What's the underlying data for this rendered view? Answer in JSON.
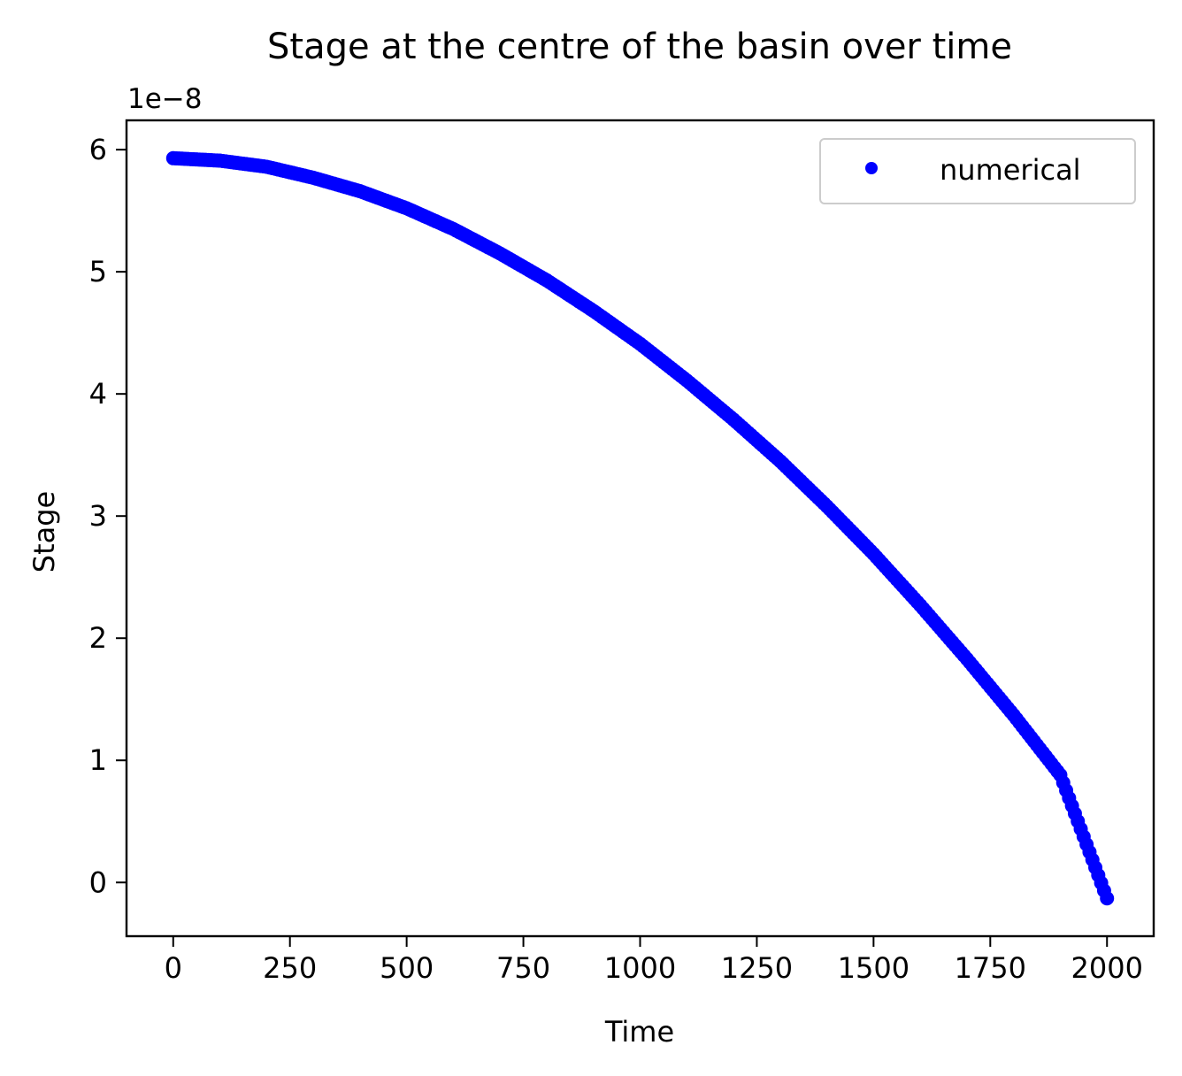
{
  "chart_data": {
    "type": "scatter",
    "title": "Stage at the centre of the  basin over time",
    "xlabel": "Time",
    "ylabel": "Stage",
    "offset_label": "1e−8",
    "xlim": [
      -100,
      2100
    ],
    "ylim": [
      -0.44,
      6.24
    ],
    "y_scale_factor": 1e-08,
    "xticks": [
      0,
      250,
      500,
      750,
      1000,
      1250,
      1500,
      1750,
      2000
    ],
    "xtick_labels": [
      "0",
      "250",
      "500",
      "750",
      "1000",
      "1250",
      "1500",
      "1750",
      "2000"
    ],
    "yticks": [
      0,
      1,
      2,
      3,
      4,
      5,
      6
    ],
    "ytick_labels": [
      "0",
      "1",
      "2",
      "3",
      "4",
      "5",
      "6"
    ],
    "grid": false,
    "legend": {
      "placement": "top-right",
      "entries": [
        "numerical"
      ]
    },
    "series": [
      {
        "name": "numerical",
        "color": "#0000ff",
        "marker": "circle",
        "x": [
          0,
          100,
          200,
          300,
          400,
          500,
          600,
          700,
          800,
          900,
          1000,
          1100,
          1200,
          1300,
          1400,
          1500,
          1600,
          1700,
          1800,
          1900,
          2000
        ],
        "y": [
          5.93,
          5.91,
          5.86,
          5.77,
          5.66,
          5.52,
          5.35,
          5.15,
          4.93,
          4.68,
          4.41,
          4.11,
          3.79,
          3.45,
          3.08,
          2.69,
          2.27,
          1.83,
          1.37,
          0.88,
          -0.13
        ]
      }
    ]
  }
}
